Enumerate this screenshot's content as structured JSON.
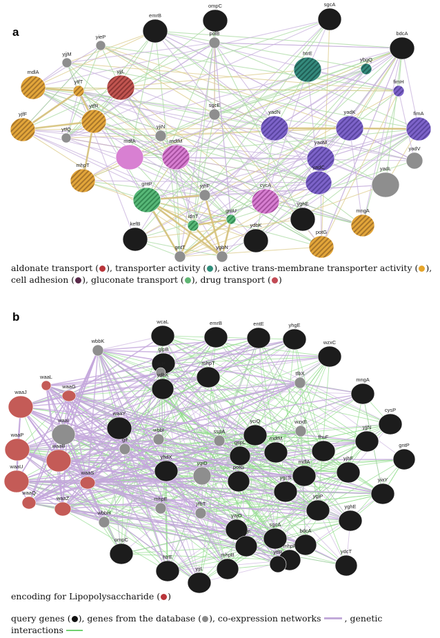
{
  "panels": {
    "a": {
      "label": "a",
      "nodes": [
        {
          "id": "emrB",
          "cls": "black"
        },
        {
          "id": "ompC",
          "cls": "black"
        },
        {
          "id": "sgcA",
          "cls": "black"
        },
        {
          "id": "bdcA",
          "cls": "black"
        },
        {
          "id": "yieP",
          "cls": "gray"
        },
        {
          "id": "polB",
          "cls": "gray"
        },
        {
          "id": "yjjM",
          "cls": "gray"
        },
        {
          "id": "htrE",
          "cls": "teal"
        },
        {
          "id": "ybgQ",
          "cls": "teal"
        },
        {
          "id": "mdlA",
          "cls": "orange"
        },
        {
          "id": "yjjL",
          "cls": "red"
        },
        {
          "id": "ytfT",
          "cls": "orange"
        },
        {
          "id": "fimH",
          "cls": "purple"
        },
        {
          "id": "yjfF",
          "cls": "orange"
        },
        {
          "id": "ytfR",
          "cls": "orange"
        },
        {
          "id": "sgcE",
          "cls": "gray"
        },
        {
          "id": "yadN",
          "cls": "purple"
        },
        {
          "id": "yadK",
          "cls": "purple"
        },
        {
          "id": "fimA",
          "cls": "purple"
        },
        {
          "id": "ytfQ",
          "cls": "gray"
        },
        {
          "id": "yjiN",
          "cls": "gray"
        },
        {
          "id": "mdfA",
          "cls": "pink"
        },
        {
          "id": "mdtM",
          "cls": "pinkstripe"
        },
        {
          "id": "yadM",
          "cls": "purple"
        },
        {
          "id": "yadV",
          "cls": "gray"
        },
        {
          "id": "mhpT",
          "cls": "orange"
        },
        {
          "id": "yadC",
          "cls": "purple"
        },
        {
          "id": "yadL",
          "cls": "gray"
        },
        {
          "id": "gntP",
          "cls": "green"
        },
        {
          "id": "yjhF",
          "cls": "gray"
        },
        {
          "id": "cycA",
          "cls": "pinkstripe"
        },
        {
          "id": "gntU",
          "cls": "green"
        },
        {
          "id": "yghE",
          "cls": "black"
        },
        {
          "id": "kefB",
          "cls": "black"
        },
        {
          "id": "idnT",
          "cls": "green"
        },
        {
          "id": "ydbK",
          "cls": "black"
        },
        {
          "id": "mngA",
          "cls": "orange"
        },
        {
          "id": "potG",
          "cls": "orange"
        },
        {
          "id": "gntT",
          "cls": "gray"
        },
        {
          "id": "ygbN",
          "cls": "gray"
        }
      ],
      "legend": {
        "line1": [
          {
            "text": "aldonate transport (",
            "dot": "#b9353a",
            "after": "),"
          },
          {
            "text": " transporter activity (",
            "dot": "#2f8f7b",
            "after": "),"
          },
          {
            "text": " active trans-membrane transporter activity  (",
            "dot": "#e6a52a",
            "after": "),"
          }
        ],
        "line2": [
          {
            "text": "cell adhesion (",
            "dot": "#5a2a4a",
            "after": "),"
          },
          {
            "text": " gluconate transport (",
            "dot": "#5fb573",
            "after": "),"
          },
          {
            "text": " drug transport (",
            "dot": "#c24a55",
            "after": ")"
          }
        ]
      }
    },
    "b": {
      "label": "b",
      "nodes": [
        {
          "id": "wcaL",
          "cls": "black"
        },
        {
          "id": "emrB",
          "cls": "black"
        },
        {
          "id": "entE",
          "cls": "black"
        },
        {
          "id": "wbbK",
          "cls": "gray"
        },
        {
          "id": "glpB",
          "cls": "black"
        },
        {
          "id": "yhgE",
          "cls": "black"
        },
        {
          "id": "wzxC",
          "cls": "black"
        },
        {
          "id": "thiP",
          "cls": "gray"
        },
        {
          "id": "mhpT",
          "cls": "black"
        },
        {
          "id": "ydbK",
          "cls": "black"
        },
        {
          "id": "tfbX",
          "cls": "gray"
        },
        {
          "id": "mngA",
          "cls": "black"
        },
        {
          "id": "waaL",
          "cls": "red"
        },
        {
          "id": "waaG",
          "cls": "red"
        },
        {
          "id": "waaJ",
          "cls": "red"
        },
        {
          "id": "cysP",
          "cls": "black"
        },
        {
          "id": "waaI",
          "cls": "gray"
        },
        {
          "id": "waaY",
          "cls": "black"
        },
        {
          "id": "wzxE",
          "cls": "gray"
        },
        {
          "id": "yjjN",
          "cls": "black"
        },
        {
          "id": "waaP",
          "cls": "red"
        },
        {
          "id": "wbbI",
          "cls": "gray"
        },
        {
          "id": "sspA",
          "cls": "gray"
        },
        {
          "id": "yciQ",
          "cls": "black"
        },
        {
          "id": "waaB",
          "cls": "red"
        },
        {
          "id": "gspL",
          "cls": "black"
        },
        {
          "id": "mdtM",
          "cls": "black"
        },
        {
          "id": "fhuF",
          "cls": "black"
        },
        {
          "id": "gntP",
          "cls": "black"
        },
        {
          "id": "gif",
          "cls": "gray"
        },
        {
          "id": "yhdX",
          "cls": "black"
        },
        {
          "id": "ygiD",
          "cls": "gray"
        },
        {
          "id": "mdlA",
          "cls": "black"
        },
        {
          "id": "yjhF",
          "cls": "black"
        },
        {
          "id": "waaU",
          "cls": "red"
        },
        {
          "id": "waaS",
          "cls": "red"
        },
        {
          "id": "potG",
          "cls": "black"
        },
        {
          "id": "ygcS",
          "cls": "black"
        },
        {
          "id": "yiaY",
          "cls": "black"
        },
        {
          "id": "waaQ",
          "cls": "red"
        },
        {
          "id": "waaZ",
          "cls": "red"
        },
        {
          "id": "mhpE",
          "cls": "gray"
        },
        {
          "id": "yfbT",
          "cls": "gray"
        },
        {
          "id": "ygiP",
          "cls": "black"
        },
        {
          "id": "yghE",
          "cls": "black"
        },
        {
          "id": "wbbH",
          "cls": "gray"
        },
        {
          "id": "yajO",
          "cls": "black"
        },
        {
          "id": "sgcA",
          "cls": "black"
        },
        {
          "id": "bdcA",
          "cls": "black"
        },
        {
          "id": "ompC",
          "cls": "black"
        },
        {
          "id": "ytfF",
          "cls": "black"
        },
        {
          "id": "htrE",
          "cls": "black"
        },
        {
          "id": "mhpF",
          "cls": "black"
        },
        {
          "id": "ydcT",
          "cls": "black"
        },
        {
          "id": "mhpB",
          "cls": "black"
        },
        {
          "id": "ytfR",
          "cls": "black"
        },
        {
          "id": "yjjL",
          "cls": "black"
        }
      ],
      "legend_lps": "encoding for Lipopolysaccharide (",
      "legend_lps_after": ")",
      "legend_bottom": {
        "query": "query genes (",
        "query_after": "),",
        "db": " genes from the database (",
        "db_after": "),",
        "coexp": " co-expression networks",
        "genetic": ", genetic",
        "interactions": "interactions"
      }
    }
  },
  "colors": {
    "black": "#1a1a1a",
    "gray": "#8a8a8a",
    "red": "#b8504c",
    "teal": "#2f7f73",
    "orange": "#e0a030",
    "purple": "#7a5cc0",
    "pink": "#d57ad0",
    "green": "#4aa86a",
    "coexp": "#c2a9d9",
    "genetic": "#6fd06f",
    "shared": "#d8c070"
  }
}
